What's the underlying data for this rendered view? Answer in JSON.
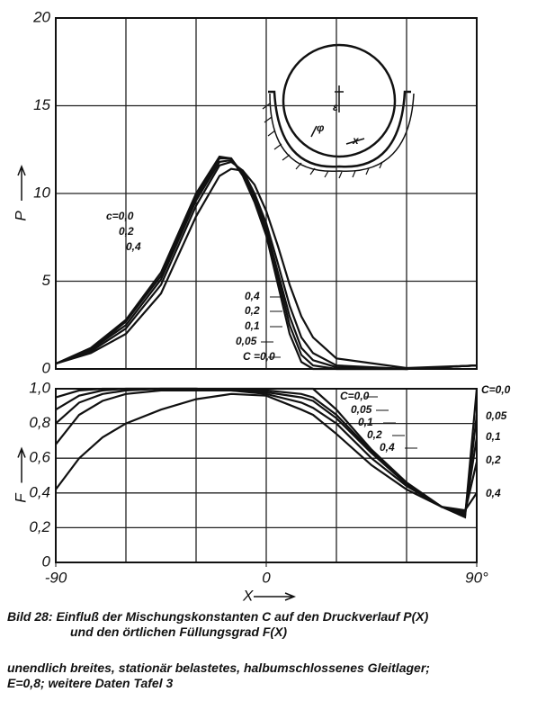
{
  "chart_data": [
    {
      "type": "line",
      "ylabel": "P",
      "xlim": [
        -90,
        90
      ],
      "ylim": [
        0,
        20
      ],
      "yticks": [
        0,
        5,
        10,
        15,
        20
      ],
      "xgrid": [
        -90,
        -60,
        -30,
        0,
        30,
        60,
        90
      ],
      "grid": true,
      "color": "#111111",
      "x": [
        -90,
        -75,
        -60,
        -45,
        -30,
        -20,
        -15,
        -10,
        -5,
        0,
        5,
        10,
        15,
        20,
        30,
        60,
        90
      ],
      "series": [
        {
          "name": "C =0,0",
          "values": [
            0.3,
            1.2,
            2.8,
            5.5,
            10,
            12.1,
            12,
            11,
            9.5,
            7.6,
            4.8,
            2.0,
            0.4,
            0,
            0,
            0,
            0.2
          ]
        },
        {
          "name": "0,05",
          "values": [
            0.3,
            1.1,
            2.7,
            5.3,
            9.8,
            12.0,
            12.0,
            11.1,
            9.6,
            7.8,
            5.2,
            2.5,
            0.8,
            0.2,
            0,
            0,
            0.2
          ]
        },
        {
          "name": "0,1",
          "values": [
            0.3,
            1.1,
            2.5,
            5.1,
            9.6,
            11.8,
            11.9,
            11.2,
            9.8,
            8.0,
            5.5,
            3.0,
            1.2,
            0.5,
            0.1,
            0,
            0.2
          ]
        },
        {
          "name": "0,2",
          "values": [
            0.3,
            1.0,
            2.3,
            4.8,
            9.3,
            11.6,
            11.8,
            11.3,
            10.0,
            8.3,
            6.0,
            3.6,
            1.8,
            0.9,
            0.2,
            0,
            0.2
          ]
        },
        {
          "name": "0,4",
          "values": [
            0.3,
            0.9,
            2.0,
            4.3,
            8.7,
            11.0,
            11.4,
            11.3,
            10.5,
            9.0,
            7.0,
            4.8,
            3.0,
            1.8,
            0.6,
            0.05,
            0.2
          ]
        }
      ],
      "annotations": [
        "c=0,0",
        "0,2",
        "0,4"
      ],
      "inset_labels": [
        "ε",
        "φ",
        "x"
      ]
    },
    {
      "type": "line",
      "ylabel": "F",
      "xlabel": "X",
      "xlim": [
        -90,
        90
      ],
      "ylim": [
        0,
        1.0
      ],
      "yticks": [
        0,
        {
          "value": 0.2,
          "label": "0,2"
        },
        {
          "value": 0.4,
          "label": "0,4"
        },
        {
          "value": 0.6,
          "label": "0,6"
        },
        {
          "value": 0.8,
          "label": "0,8"
        },
        {
          "value": 1.0,
          "label": "1,0"
        }
      ],
      "xticks": [
        -90,
        0,
        {
          "value": 90,
          "label": "90°"
        }
      ],
      "xgrid": [
        -90,
        -60,
        -30,
        0,
        30,
        60,
        90
      ],
      "grid": true,
      "color": "#111111",
      "x": [
        -90,
        -80,
        -70,
        -60,
        -45,
        -30,
        -15,
        0,
        15,
        20,
        30,
        45,
        60,
        75,
        85,
        90
      ],
      "series": [
        {
          "name": "C=0,0",
          "values": [
            0.95,
            0.99,
            1.0,
            1.0,
            1.0,
            1.0,
            1.0,
            1.0,
            1.0,
            1.0,
            0.88,
            0.65,
            0.46,
            0.32,
            0.26,
            1.0
          ]
        },
        {
          "name": "0,05",
          "values": [
            0.88,
            0.96,
            0.99,
            1.0,
            1.0,
            1.0,
            0.99,
            0.99,
            0.97,
            0.95,
            0.85,
            0.64,
            0.45,
            0.32,
            0.27,
            0.85
          ]
        },
        {
          "name": "0,1",
          "values": [
            0.8,
            0.92,
            0.97,
            0.99,
            1.0,
            1.0,
            0.99,
            0.98,
            0.95,
            0.93,
            0.83,
            0.63,
            0.45,
            0.32,
            0.28,
            0.72
          ]
        },
        {
          "name": "0,2",
          "values": [
            0.68,
            0.85,
            0.93,
            0.97,
            0.99,
            0.99,
            0.99,
            0.97,
            0.92,
            0.89,
            0.8,
            0.6,
            0.44,
            0.32,
            0.29,
            0.58
          ]
        },
        {
          "name": "0,4",
          "values": [
            0.42,
            0.6,
            0.72,
            0.8,
            0.88,
            0.94,
            0.97,
            0.96,
            0.88,
            0.85,
            0.74,
            0.56,
            0.42,
            0.32,
            0.3,
            0.4
          ]
        }
      ],
      "annotations": [
        "C=0,0",
        "0,05",
        "0,1",
        "0,2",
        "0,4"
      ]
    }
  ],
  "caption": [
    "Bild 28: Einfluß der Mischungskonstanten C auf den Druckverlauf P(X)",
    "und den örtlichen Füllungsgrad F(X)",
    "unendlich breites, stationär belastetes, halbumschlossenes Gleitlager;",
    "E=0,8; weitere Daten Tafel 3"
  ]
}
